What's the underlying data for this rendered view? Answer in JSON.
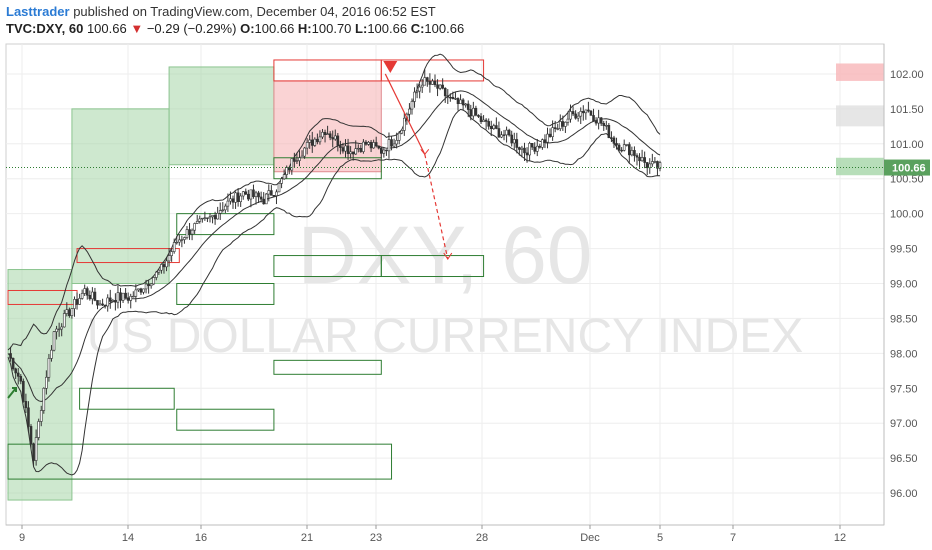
{
  "header": {
    "author": "Lasttrader",
    "published_text": " published on TradingView.com, December 04, 2016 06:52 EST",
    "symbol": "TVC:DXY, 60",
    "last": "100.66",
    "change_arrow": "▼",
    "change": "−0.29 (−0.29%)",
    "o_label": "O:",
    "o_value": "100.66",
    "h_label": "H:",
    "h_value": "100.70",
    "l_label": "L:",
    "l_value": "100.66",
    "c_label": "C:",
    "c_value": "100.66"
  },
  "watermark": {
    "line1": "DXY, 60",
    "line2": "US DOLLAR CURRENCY INDEX"
  },
  "colors": {
    "up_zone": "#a5d6a7",
    "down_zone": "#f7b5b8",
    "outline_green": "#2e7d32",
    "outline_red": "#e53935",
    "candle": "#333333",
    "grid": "#eeeeee",
    "axis_text": "#555555"
  },
  "chart_data": {
    "type": "candlestick",
    "ylim": [
      95.6,
      102.4
    ],
    "y_ticks": [
      "96.00",
      "96.50",
      "97.00",
      "97.50",
      "98.00",
      "98.50",
      "99.00",
      "99.50",
      "100.00",
      "100.50",
      "101.00",
      "101.50",
      "102.00"
    ],
    "x_ticks": [
      "9",
      "14",
      "16",
      "21",
      "23",
      "28",
      "Dec",
      "5",
      "7",
      "12"
    ],
    "last_price_label": "100.66",
    "last_price": 100.66,
    "close_path": [
      [
        0,
        98.0
      ],
      [
        5,
        97.6
      ],
      [
        10,
        96.5
      ],
      [
        14,
        97.5
      ],
      [
        18,
        98.3
      ],
      [
        24,
        98.6
      ],
      [
        30,
        98.9
      ],
      [
        36,
        98.7
      ],
      [
        42,
        98.8
      ],
      [
        48,
        98.8
      ],
      [
        54,
        99.0
      ],
      [
        60,
        99.2
      ],
      [
        66,
        99.6
      ],
      [
        72,
        99.8
      ],
      [
        78,
        99.9
      ],
      [
        84,
        100.1
      ],
      [
        92,
        100.3
      ],
      [
        100,
        100.2
      ],
      [
        106,
        100.4
      ],
      [
        112,
        100.8
      ],
      [
        118,
        101.0
      ],
      [
        124,
        101.2
      ],
      [
        130,
        101.0
      ],
      [
        134,
        100.9
      ],
      [
        140,
        101.0
      ],
      [
        146,
        100.9
      ],
      [
        152,
        101.1
      ],
      [
        158,
        101.6
      ],
      [
        162,
        101.9
      ],
      [
        168,
        101.8
      ],
      [
        174,
        101.6
      ],
      [
        180,
        101.5
      ],
      [
        186,
        101.3
      ],
      [
        190,
        101.2
      ],
      [
        196,
        101.1
      ],
      [
        202,
        100.9
      ],
      [
        208,
        101.0
      ],
      [
        214,
        101.2
      ],
      [
        220,
        101.4
      ],
      [
        226,
        101.5
      ],
      [
        232,
        101.3
      ],
      [
        238,
        101.0
      ],
      [
        244,
        100.9
      ],
      [
        250,
        100.7
      ],
      [
        255,
        100.66
      ]
    ],
    "boxes": [
      {
        "kind": "green-fill",
        "t0": 0,
        "t1": 25,
        "y0": 95.9,
        "y1": 99.2
      },
      {
        "kind": "green-fill",
        "t0": 25,
        "t1": 63,
        "y0": 99.0,
        "y1": 101.5
      },
      {
        "kind": "green-fill",
        "t0": 63,
        "t1": 104,
        "y0": 100.7,
        "y1": 102.1
      },
      {
        "kind": "red-fill",
        "t0": 104,
        "t1": 146,
        "y0": 100.6,
        "y1": 101.9
      },
      {
        "kind": "red-outline",
        "t0": 0,
        "t1": 27,
        "y0": 98.7,
        "y1": 98.9
      },
      {
        "kind": "red-outline",
        "t0": 27,
        "t1": 67,
        "y0": 99.3,
        "y1": 99.5
      },
      {
        "kind": "red-outline",
        "t0": 104,
        "t1": 146,
        "y0": 101.9,
        "y1": 102.2
      },
      {
        "kind": "red-outline",
        "t0": 146,
        "t1": 186,
        "y0": 101.9,
        "y1": 102.2
      },
      {
        "kind": "green-outline",
        "t0": 104,
        "t1": 146,
        "y0": 100.5,
        "y1": 100.8
      },
      {
        "kind": "green-outline",
        "t0": 66,
        "t1": 104,
        "y0": 99.7,
        "y1": 100.0
      },
      {
        "kind": "green-outline",
        "t0": 104,
        "t1": 146,
        "y0": 99.1,
        "y1": 99.4
      },
      {
        "kind": "green-outline",
        "t0": 146,
        "t1": 186,
        "y0": 99.1,
        "y1": 99.4
      },
      {
        "kind": "green-outline",
        "t0": 66,
        "t1": 104,
        "y0": 98.7,
        "y1": 99.0
      },
      {
        "kind": "green-outline",
        "t0": 104,
        "t1": 146,
        "y0": 97.7,
        "y1": 97.9
      },
      {
        "kind": "green-outline",
        "t0": 28,
        "t1": 65,
        "y0": 97.2,
        "y1": 97.5
      },
      {
        "kind": "green-outline",
        "t0": 66,
        "t1": 104,
        "y0": 96.9,
        "y1": 97.2
      },
      {
        "kind": "green-outline",
        "t0": 0,
        "t1": 150,
        "y0": 96.2,
        "y1": 96.7
      }
    ],
    "projection": [
      [
        146,
        102.0
      ],
      [
        163,
        100.85
      ],
      [
        172,
        99.35
      ]
    ]
  }
}
